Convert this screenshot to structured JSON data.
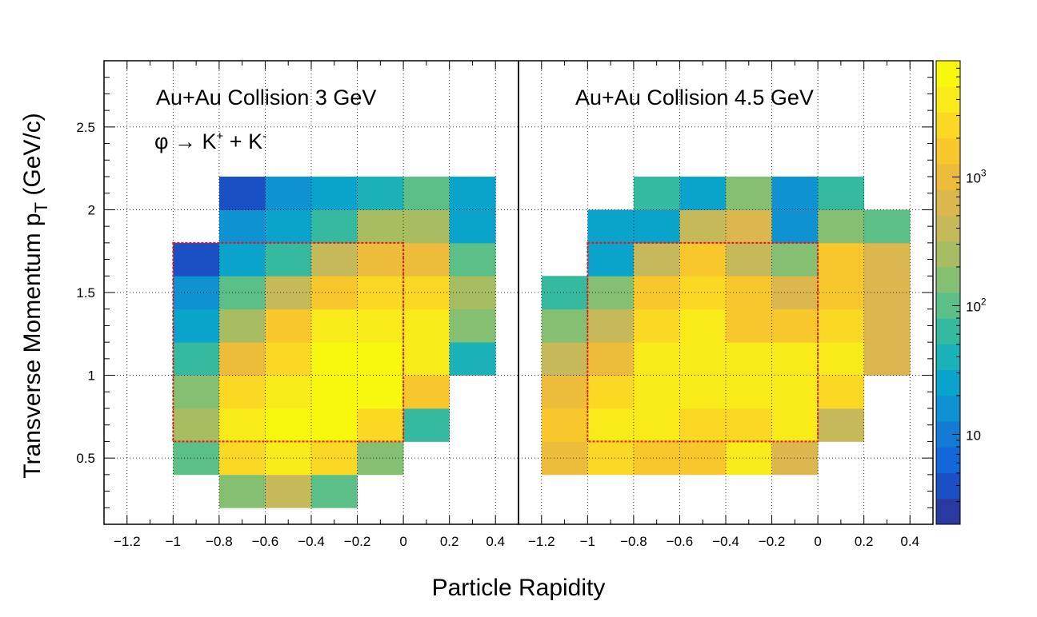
{
  "chart_data": [
    {
      "type": "heatmap",
      "title": "Au+Au Collision 3 GeV",
      "annotation": "φ → K⁺ + K⁻",
      "xlabel": "Particle Rapidity",
      "ylabel": "Transverse Momentum p_T (GeV/c)",
      "xlim": [
        -1.3,
        0.5
      ],
      "ylim": [
        0.1,
        2.9
      ],
      "xticks": [
        "−1.2",
        "−1",
        "−0.8",
        "−0.6",
        "−0.4",
        "−0.2",
        "0",
        "0.2",
        "0.4"
      ],
      "yticks": [
        "0.5",
        "1",
        "1.5",
        "2",
        "2.5"
      ],
      "grid": true,
      "x_bin_edges": [
        -1.0,
        -0.8,
        -0.6,
        -0.4,
        -0.2,
        0.0,
        0.2,
        0.4
      ],
      "y_bin_edges": [
        0.2,
        0.4,
        0.6,
        0.8,
        1.0,
        1.2,
        1.4,
        1.6,
        1.8,
        2.0,
        2.2
      ],
      "z_log": true,
      "cells": [
        [
          null,
          200,
          400,
          120,
          null,
          null,
          null
        ],
        [
          120,
          2500,
          3500,
          2500,
          200,
          null,
          null
        ],
        [
          300,
          3500,
          7000,
          7000,
          3000,
          70,
          null
        ],
        [
          200,
          2500,
          5000,
          7000,
          7000,
          1500,
          null
        ],
        [
          70,
          1000,
          2500,
          7000,
          7000,
          3500,
          50
        ],
        [
          30,
          300,
          1500,
          4000,
          5000,
          3500,
          200
        ],
        [
          15,
          120,
          400,
          1500,
          2500,
          2500,
          300
        ],
        [
          5,
          30,
          70,
          400,
          1000,
          1000,
          100
        ],
        [
          null,
          15,
          25,
          70,
          300,
          300,
          30
        ],
        [
          null,
          5,
          15,
          30,
          50,
          120,
          25
        ]
      ],
      "selection_box": {
        "x": [
          -1.0,
          0.0
        ],
        "y": [
          0.6,
          1.8
        ],
        "style": "red dashed"
      }
    },
    {
      "type": "heatmap",
      "title": "Au+Au Collision 4.5 GeV",
      "xlim": [
        -1.3,
        0.5
      ],
      "ylim": [
        0.1,
        2.9
      ],
      "xticks": [
        "−1.2",
        "−1",
        "−0.8",
        "−0.6",
        "−0.4",
        "−0.2",
        "0",
        "0.2",
        "0.4"
      ],
      "grid": true,
      "x_bin_edges": [
        -1.2,
        -1.0,
        -0.8,
        -0.6,
        -0.4,
        -0.2,
        0.0,
        0.2,
        0.4
      ],
      "y_bin_edges": [
        0.4,
        0.6,
        0.8,
        1.0,
        1.2,
        1.4,
        1.6,
        1.8,
        2.0,
        2.2
      ],
      "z_log": true,
      "cells": [
        [
          1000,
          3000,
          1500,
          1500,
          4000,
          700,
          null,
          null
        ],
        [
          1500,
          4000,
          4000,
          2500,
          3000,
          4000,
          400,
          null
        ],
        [
          1000,
          3000,
          5000,
          4000,
          4000,
          5000,
          2500,
          null
        ],
        [
          400,
          1000,
          4000,
          5000,
          4000,
          4000,
          4000,
          700
        ],
        [
          200,
          400,
          2500,
          4000,
          1500,
          1500,
          3000,
          700
        ],
        [
          70,
          200,
          1500,
          3000,
          1500,
          700,
          1500,
          700
        ],
        [
          null,
          30,
          400,
          1500,
          400,
          150,
          1500,
          700
        ],
        [
          null,
          30,
          25,
          400,
          700,
          15,
          200,
          100
        ],
        [
          null,
          null,
          70,
          30,
          150,
          20,
          70,
          null
        ]
      ],
      "selection_box": {
        "x": [
          -1.0,
          0.0
        ],
        "y": [
          0.6,
          1.8
        ],
        "style": "red dashed"
      }
    }
  ],
  "labels": {
    "panel1_title": "Au+Au Collision 3 GeV",
    "panel1_annotation_phi": "φ → K",
    "panel1_annotation_plus": "+",
    "panel1_annotation_mid": " + K",
    "panel1_annotation_minus": "-",
    "panel2_title": "Au+Au Collision 4.5 GeV",
    "xlabel": "Particle Rapidity",
    "ylabel_main": "Transverse Momentum p",
    "ylabel_sub": "T",
    "ylabel_unit": "  (GeV/c)"
  },
  "colorbar": {
    "scale": "log",
    "zlim": [
      2,
      8000
    ],
    "ticks": [
      {
        "value": 10,
        "base": "10",
        "exp": ""
      },
      {
        "value": 100,
        "base": "10",
        "exp": "2"
      },
      {
        "value": 1000,
        "base": "10",
        "exp": "3"
      }
    ],
    "palette": [
      "#2a3a9e",
      "#1b4fc4",
      "#1466db",
      "#137ad6",
      "#0e92d1",
      "#0aa3cc",
      "#1bb1b8",
      "#35b99f",
      "#5dbf88",
      "#85bf72",
      "#a8bd62",
      "#c6b95a",
      "#dbb74e",
      "#edbc3a",
      "#f7c72c",
      "#fbd824",
      "#f9ea1a",
      "#f8f80e"
    ]
  },
  "colors": {
    "box": "#e8151b",
    "grid": "#000000"
  }
}
